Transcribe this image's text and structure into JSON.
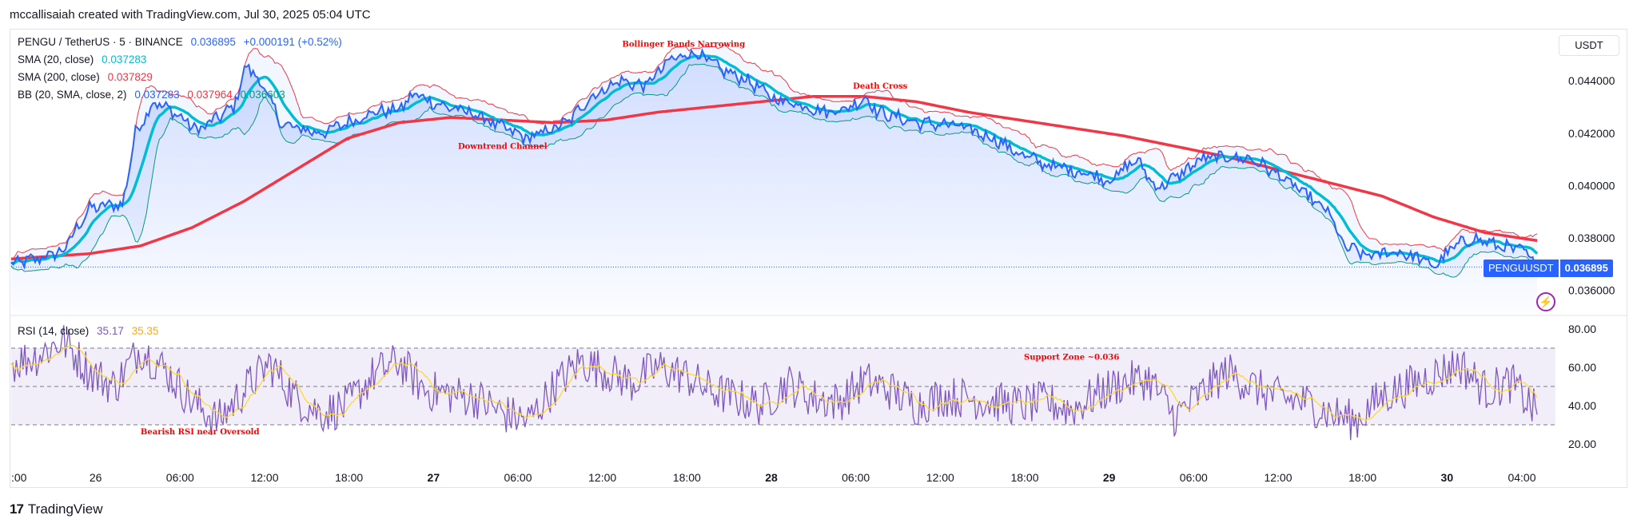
{
  "header": {
    "attribution": "mccallisaiah created with TradingView.com, Jul 30, 2025 05:04 UTC"
  },
  "legend": {
    "main": {
      "label": "PENGU / TetherUS · 5 · BINANCE",
      "price": "0.036895",
      "change": "+0.000191 (+0.52%)"
    },
    "sma20": {
      "label": "SMA (20, close)",
      "value": "0.037283"
    },
    "sma200": {
      "label": "SMA (200, close)",
      "value": "0.037829"
    },
    "bb": {
      "label": "BB (20, SMA, close, 2)",
      "basis": "0.037283",
      "upper": "0.037964",
      "lower": "0.036603"
    },
    "rsi": {
      "label": "RSI (14, close)",
      "value": "35.17",
      "ma": "35.35"
    }
  },
  "toolbar": {
    "unit_label": "USDT"
  },
  "price_tag": {
    "symbol": "PENGUUSDT",
    "value": "0.036895"
  },
  "footer": {
    "brand": "TradingView",
    "logo": "17"
  },
  "colors": {
    "price": "#2962ff",
    "sma20": "#00bcd4",
    "sma200": "#f23645",
    "bb_upper": "#f23645",
    "bb_lower": "#089981",
    "bb_fill": "#2962ff",
    "rsi": "#7e57c2",
    "rsi_ma": "#fdd835",
    "annotation": "#ff0000"
  },
  "chart_data": {
    "type": "line",
    "x_ticks": [
      ":00",
      "26",
      "06:00",
      "12:00",
      "18:00",
      "27",
      "06:00",
      "12:00",
      "18:00",
      "28",
      "06:00",
      "12:00",
      "18:00",
      "29",
      "06:00",
      "12:00",
      "18:00",
      "30",
      "04:00"
    ],
    "bold_x_ticks": [
      "27",
      "28",
      "29",
      "30"
    ],
    "price_axis": {
      "ticks": [
        "0.044000",
        "0.042000",
        "0.040000",
        "0.038000",
        "0.036000"
      ],
      "ylim": [
        0.0352,
        0.0458
      ]
    },
    "rsi_axis": {
      "ticks": [
        "80.00",
        "60.00",
        "40.00",
        "20.00"
      ],
      "ylim": [
        15,
        85
      ],
      "band": [
        30,
        70
      ],
      "mid": 50
    },
    "price_anchors": [
      [
        0,
        0.037
      ],
      [
        1,
        0.0372
      ],
      [
        2,
        0.0375
      ],
      [
        3,
        0.0391
      ],
      [
        4,
        0.0393
      ],
      [
        4.3,
        0.0392
      ],
      [
        4.8,
        0.042
      ],
      [
        5.5,
        0.0432
      ],
      [
        6.3,
        0.0428
      ],
      [
        7.2,
        0.0421
      ],
      [
        8,
        0.0426
      ],
      [
        8.6,
        0.043
      ],
      [
        9.1,
        0.0446
      ],
      [
        9.6,
        0.044
      ],
      [
        10.5,
        0.0423
      ],
      [
        12,
        0.042
      ],
      [
        13,
        0.0424
      ],
      [
        14,
        0.0428
      ],
      [
        15,
        0.0429
      ],
      [
        15.6,
        0.0435
      ],
      [
        16.5,
        0.0431
      ],
      [
        18,
        0.0427
      ],
      [
        19,
        0.0422
      ],
      [
        20,
        0.0418
      ],
      [
        21.5,
        0.0424
      ],
      [
        22.3,
        0.0433
      ],
      [
        23.5,
        0.044
      ],
      [
        24.5,
        0.0438
      ],
      [
        25.5,
        0.0448
      ],
      [
        26.4,
        0.0451
      ],
      [
        27.5,
        0.0444
      ],
      [
        28.5,
        0.044
      ],
      [
        29.5,
        0.0433
      ],
      [
        30.5,
        0.0431
      ],
      [
        31.5,
        0.0428
      ],
      [
        32.5,
        0.043
      ],
      [
        33,
        0.0434
      ],
      [
        33.5,
        0.0428
      ],
      [
        35,
        0.0424
      ],
      [
        36.5,
        0.0423
      ],
      [
        38,
        0.0418
      ],
      [
        39,
        0.0412
      ],
      [
        40,
        0.0408
      ],
      [
        41.5,
        0.0405
      ],
      [
        42.5,
        0.0402
      ],
      [
        43.5,
        0.041
      ],
      [
        44.3,
        0.0399
      ],
      [
        45,
        0.0403
      ],
      [
        46,
        0.041
      ],
      [
        47,
        0.0411
      ],
      [
        48,
        0.041
      ],
      [
        49,
        0.0404
      ],
      [
        50,
        0.0397
      ],
      [
        51,
        0.0389
      ],
      [
        51.5,
        0.0377
      ],
      [
        52.5,
        0.0373
      ],
      [
        53.5,
        0.0375
      ],
      [
        54.5,
        0.0372
      ],
      [
        55,
        0.0369
      ],
      [
        55.7,
        0.0376
      ],
      [
        56.5,
        0.038
      ],
      [
        57.5,
        0.0377
      ],
      [
        58.5,
        0.0375
      ],
      [
        59,
        0.0369
      ]
    ],
    "sma200_anchors": [
      [
        0,
        0.0372
      ],
      [
        3,
        0.0374
      ],
      [
        5,
        0.0377
      ],
      [
        7,
        0.0384
      ],
      [
        9,
        0.0394
      ],
      [
        11,
        0.0406
      ],
      [
        13,
        0.0418
      ],
      [
        15,
        0.0424
      ],
      [
        17,
        0.0426
      ],
      [
        19,
        0.0425
      ],
      [
        21,
        0.0424
      ],
      [
        23,
        0.0425
      ],
      [
        25,
        0.0428
      ],
      [
        27,
        0.043
      ],
      [
        29,
        0.0432
      ],
      [
        31,
        0.0434
      ],
      [
        33,
        0.0434
      ],
      [
        35,
        0.0432
      ],
      [
        37,
        0.0428
      ],
      [
        39,
        0.0425
      ],
      [
        41,
        0.0422
      ],
      [
        43,
        0.0419
      ],
      [
        45,
        0.0415
      ],
      [
        47,
        0.0411
      ],
      [
        49,
        0.0406
      ],
      [
        51,
        0.0401
      ],
      [
        53,
        0.0396
      ],
      [
        55,
        0.0388
      ],
      [
        57,
        0.0382
      ],
      [
        59,
        0.0379
      ]
    ],
    "rsi_anchors": [
      [
        0,
        62
      ],
      [
        1,
        66
      ],
      [
        2,
        74
      ],
      [
        3,
        58
      ],
      [
        4,
        50
      ],
      [
        5,
        70
      ],
      [
        6,
        58
      ],
      [
        7,
        42
      ],
      [
        8,
        32
      ],
      [
        9,
        48
      ],
      [
        10,
        62
      ],
      [
        11,
        44
      ],
      [
        12,
        36
      ],
      [
        13,
        40
      ],
      [
        14,
        56
      ],
      [
        15,
        63
      ],
      [
        16,
        48
      ],
      [
        17,
        46
      ],
      [
        18,
        44
      ],
      [
        19,
        36
      ],
      [
        20,
        32
      ],
      [
        21,
        50
      ],
      [
        22,
        63
      ],
      [
        23,
        58
      ],
      [
        24,
        52
      ],
      [
        25,
        60
      ],
      [
        26,
        56
      ],
      [
        27,
        48
      ],
      [
        28,
        44
      ],
      [
        29,
        40
      ],
      [
        30,
        52
      ],
      [
        31,
        44
      ],
      [
        32,
        42
      ],
      [
        33,
        53
      ],
      [
        34,
        48
      ],
      [
        35,
        40
      ],
      [
        36,
        45
      ],
      [
        37,
        44
      ],
      [
        38,
        42
      ],
      [
        39,
        40
      ],
      [
        40,
        42
      ],
      [
        41,
        38
      ],
      [
        42,
        46
      ],
      [
        43,
        52
      ],
      [
        44,
        54
      ],
      [
        45,
        34
      ],
      [
        46,
        46
      ],
      [
        47,
        58
      ],
      [
        48,
        50
      ],
      [
        49,
        44
      ],
      [
        50,
        42
      ],
      [
        51,
        36
      ],
      [
        52,
        32
      ],
      [
        53,
        45
      ],
      [
        54,
        50
      ],
      [
        55,
        56
      ],
      [
        56,
        62
      ],
      [
        57,
        48
      ],
      [
        58,
        52
      ],
      [
        59,
        36
      ]
    ],
    "annotations": [
      {
        "text": "Bollinger Bands Narrowing",
        "x": 26.0,
        "y": 0.0453
      },
      {
        "text": "Death Cross",
        "x": 33.6,
        "y": 0.0437
      },
      {
        "text": "Downtrend Channel",
        "x": 19.0,
        "y": 0.0414
      },
      {
        "text": "Support Zone ~0.036",
        "x": 41.0,
        "rsi": 64
      },
      {
        "text": "Bearish RSI near Oversold",
        "x": 7.3,
        "rsi": 25
      }
    ]
  }
}
